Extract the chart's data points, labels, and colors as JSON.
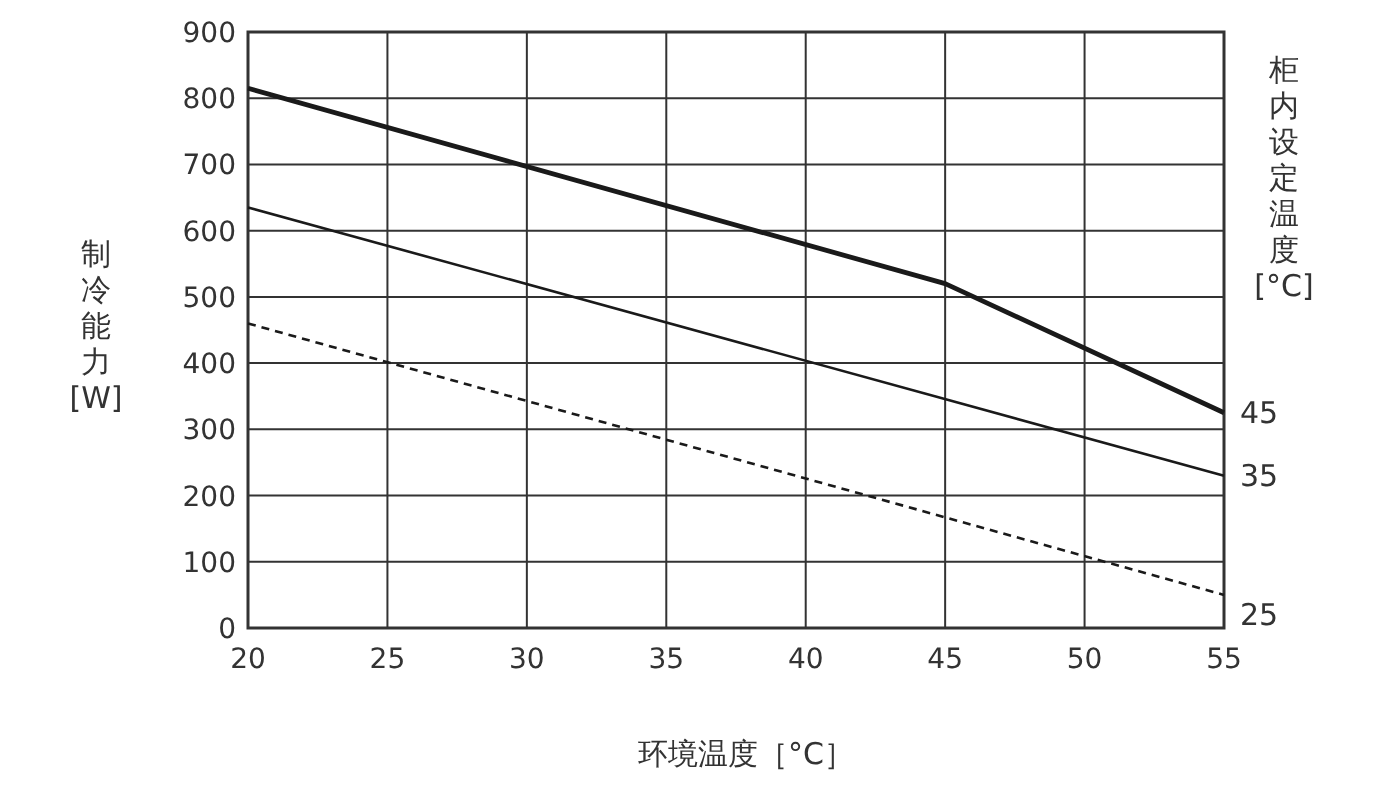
{
  "chart_data": {
    "type": "line",
    "xlabel": "环境温度［°C］",
    "ylabel": "制冷能力 [W]",
    "y2label": "柜内设定温度 [°C]",
    "xlim": [
      20,
      55
    ],
    "xticks": [
      20,
      25,
      30,
      35,
      40,
      45,
      50,
      55
    ],
    "ylim": [
      0,
      900
    ],
    "yticks": [
      0,
      100,
      200,
      300,
      400,
      500,
      600,
      700,
      800,
      900
    ],
    "grid": true,
    "legend": false,
    "marker": "none",
    "series": [
      {
        "name": "45",
        "color": "#1a1a1a",
        "line_style": "solid",
        "x": [
          20,
          45,
          55
        ],
        "values": [
          815,
          520,
          325
        ]
      },
      {
        "name": "35",
        "color": "#1a1a1a",
        "line_style": "solid",
        "x": [
          20,
          55
        ],
        "values": [
          635,
          230
        ]
      },
      {
        "name": "25",
        "color": "#1a1a1a",
        "line_style": "dashed",
        "x": [
          20,
          55
        ],
        "values": [
          460,
          50
        ]
      }
    ]
  }
}
